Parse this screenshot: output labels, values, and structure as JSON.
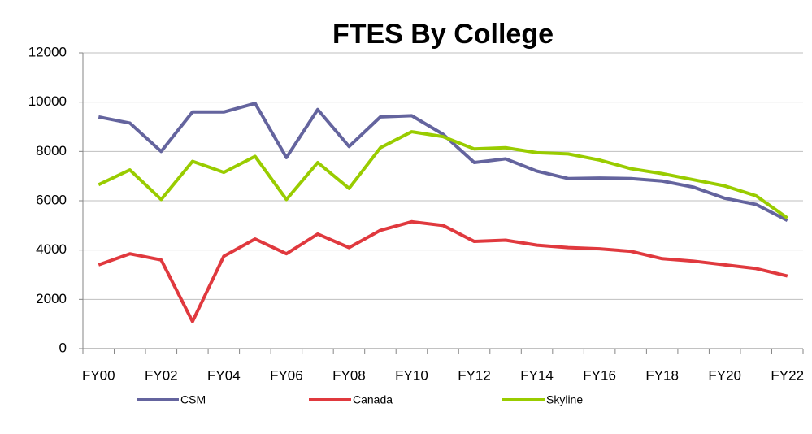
{
  "chart_data": {
    "type": "line",
    "title": "FTES By College",
    "categories": [
      "FY00",
      null,
      "FY02",
      null,
      "FY04",
      null,
      "FY06",
      null,
      "FY08",
      null,
      "FY10",
      null,
      "FY12",
      null,
      "FY14",
      null,
      "FY16",
      null,
      "FY18",
      null,
      "FY20",
      null,
      "FY22"
    ],
    "series": [
      {
        "name": "CSM",
        "color": "#64649e",
        "values": [
          9400,
          9150,
          8000,
          9600,
          9600,
          9950,
          7750,
          9700,
          8200,
          9400,
          9450,
          8700,
          7550,
          7700,
          7200,
          6900,
          6920,
          6900,
          6800,
          6550,
          6100,
          5850,
          5200
        ]
      },
      {
        "name": "Canada",
        "color": "#e0393e",
        "values": [
          3400,
          3850,
          3600,
          1100,
          3750,
          4450,
          3850,
          4650,
          4100,
          4800,
          5150,
          5000,
          4350,
          4400,
          4200,
          4100,
          4050,
          3950,
          3650,
          3550,
          3400,
          3250,
          2950
        ]
      },
      {
        "name": "Skyline",
        "color": "#99cc00",
        "values": [
          6650,
          7250,
          6050,
          7600,
          7150,
          7800,
          6050,
          7550,
          6500,
          8150,
          8800,
          8600,
          8100,
          8150,
          7950,
          7900,
          7650,
          7300,
          7100,
          6850,
          6600,
          6200,
          5300
        ]
      }
    ],
    "ylim": [
      0,
      12000
    ],
    "yticks": [
      0,
      2000,
      4000,
      6000,
      8000,
      10000,
      12000
    ],
    "grid": true,
    "legend": "bottom"
  }
}
